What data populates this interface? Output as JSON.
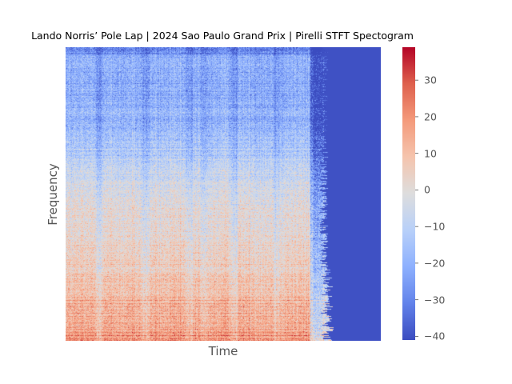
{
  "chart_data": {
    "type": "heatmap",
    "title": "Lando Norris’ Pole Lap | 2024 Sao Paulo Grand Prix | Pirelli STFT Spectogram",
    "xlabel": "Time",
    "ylabel": "Frequency",
    "colormap": "coolwarm",
    "colorbar": {
      "range": [
        -41,
        39
      ],
      "ticks": [
        30,
        20,
        10,
        0,
        -10,
        -20,
        -30,
        -40
      ],
      "tick_labels": [
        "30",
        "20",
        "10",
        "0",
        "−10",
        "−20",
        "−30",
        "−40"
      ]
    },
    "grid": false,
    "axis_ticks_visible": false,
    "signal_end_fraction": 0.8,
    "background_value": -40,
    "intensity_profile_db": {
      "frequency_fraction_from_top": [
        0.0,
        0.25,
        0.5,
        0.65,
        0.85,
        0.95,
        1.0
      ],
      "mean_db": [
        -20,
        -20,
        -2,
        3,
        10,
        13,
        20
      ]
    }
  }
}
